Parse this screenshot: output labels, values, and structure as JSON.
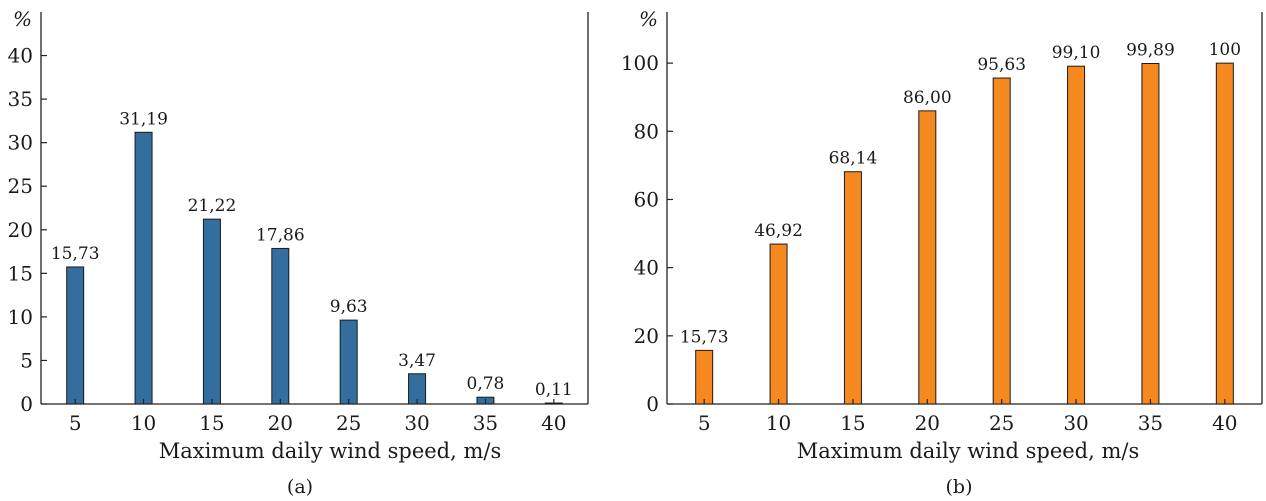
{
  "chart_data": [
    {
      "type": "bar",
      "panel_label": "(a)",
      "unit_label": "%",
      "xlabel": "Maximum daily wind speed, m/s",
      "ylabel": "",
      "categories": [
        "5",
        "10",
        "15",
        "20",
        "25",
        "30",
        "35",
        "40"
      ],
      "values": [
        15.73,
        31.19,
        21.22,
        17.86,
        9.63,
        3.47,
        0.78,
        0.11
      ],
      "value_labels": [
        "15,73",
        "31,19",
        "21,22",
        "17,86",
        "9,63",
        "3,47",
        "0,78",
        "0,11"
      ],
      "yticks": [
        0,
        5,
        10,
        15,
        20,
        25,
        30,
        35,
        40
      ],
      "ylim": [
        0,
        45
      ],
      "bar_color": "#336e9f",
      "grid": false
    },
    {
      "type": "bar",
      "panel_label": "(b)",
      "unit_label": "%",
      "xlabel": "Maximum daily wind speed, m/s",
      "ylabel": "",
      "categories": [
        "5",
        "10",
        "15",
        "20",
        "25",
        "30",
        "35",
        "40"
      ],
      "values": [
        15.73,
        46.92,
        68.14,
        86.0,
        95.63,
        99.1,
        99.89,
        100
      ],
      "value_labels": [
        "15,73",
        "46,92",
        "68,14",
        "86,00",
        "95,63",
        "99,10",
        "99,89",
        "100"
      ],
      "yticks": [
        0,
        20,
        40,
        60,
        80,
        100
      ],
      "ylim": [
        0,
        115
      ],
      "bar_color": "#f5881f",
      "grid": false
    }
  ]
}
